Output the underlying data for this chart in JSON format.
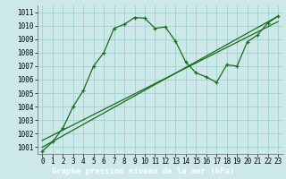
{
  "background_color": "#cce8e8",
  "plot_bg": "#cce8e8",
  "grid_color": "#99cccc",
  "line_color": "#1a6b1a",
  "title": "Graphe pression niveau de la mer (hPa)",
  "title_bg": "#2a6b4a",
  "title_color": "#ffffff",
  "ylim": [
    1000.5,
    1011.5
  ],
  "xlim": [
    -0.5,
    23.5
  ],
  "yticks": [
    1001,
    1002,
    1003,
    1004,
    1005,
    1006,
    1007,
    1008,
    1009,
    1010,
    1011
  ],
  "xticks": [
    0,
    1,
    2,
    3,
    4,
    5,
    6,
    7,
    8,
    9,
    10,
    11,
    12,
    13,
    14,
    15,
    16,
    17,
    18,
    19,
    20,
    21,
    22,
    23
  ],
  "series_wavy_x": [
    0,
    1,
    2,
    3,
    4,
    5,
    6,
    7,
    8,
    9,
    10,
    11,
    12,
    13,
    14,
    15,
    16,
    17,
    18,
    19,
    20,
    21,
    22,
    23
  ],
  "series_wavy_y": [
    1000.7,
    1001.4,
    1002.4,
    1004.0,
    1005.2,
    1007.0,
    1008.0,
    1009.8,
    1010.1,
    1010.6,
    1010.55,
    1009.8,
    1009.9,
    1008.85,
    1007.3,
    1006.5,
    1006.2,
    1005.8,
    1007.1,
    1007.0,
    1008.8,
    1009.3,
    1010.2,
    1010.7
  ],
  "trend1_x": [
    0,
    23
  ],
  "trend1_y": [
    1001.0,
    1010.7
  ],
  "trend2_x": [
    0,
    23
  ],
  "trend2_y": [
    1001.5,
    1010.3
  ],
  "tick_fontsize": 5.5,
  "title_fontsize": 6.5
}
